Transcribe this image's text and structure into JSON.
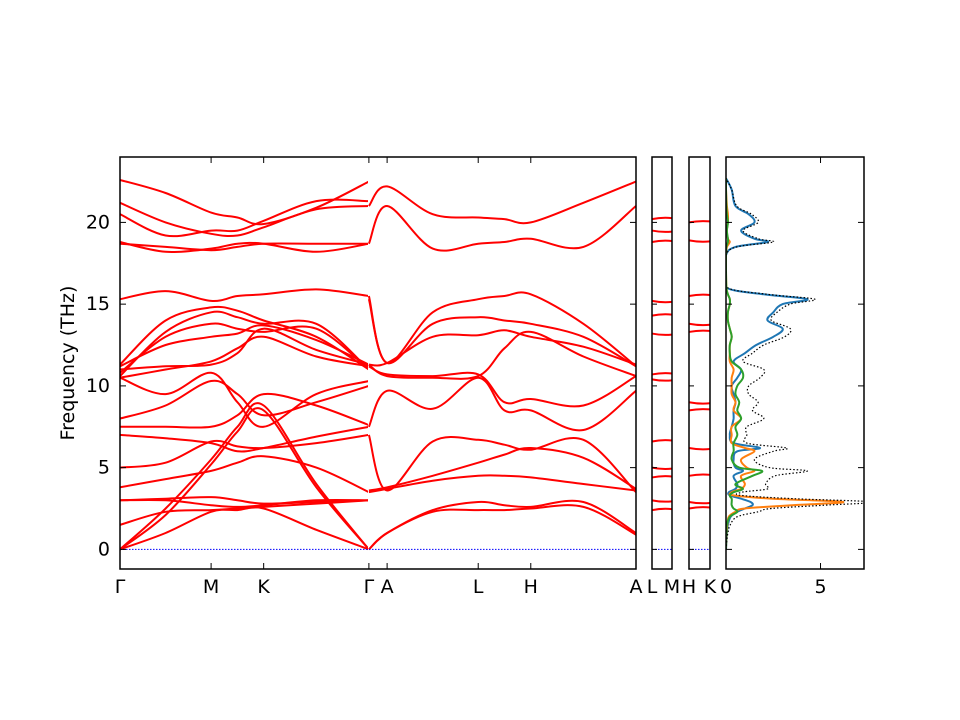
{
  "chart_data": {
    "type": "line",
    "title": "",
    "ylabel": "Frequency (THz)",
    "ylim": [
      -1.2,
      24
    ],
    "y_ticks": [
      0,
      5,
      10,
      15,
      20
    ],
    "colors": {
      "bands": "#ff0000",
      "zero_line": "#0000ff",
      "dos_total": "#000000",
      "dos_1": "#1f77b4",
      "dos_2": "#ff7f0e",
      "dos_3": "#2ca02c"
    },
    "band_panel": {
      "path_ticks": [
        {
          "label": "Γ",
          "x": 0
        },
        {
          "label": "M",
          "x": 1
        },
        {
          "label": "K",
          "x": 1.577
        },
        {
          "label": "Γ",
          "x": 2.732
        },
        {
          "label": "A",
          "x": 2.932
        },
        {
          "label": "L",
          "x": 3.932
        },
        {
          "label": "H",
          "x": 4.509
        },
        {
          "label": "A",
          "x": 5.664
        }
      ],
      "xlim": [
        0,
        5.664
      ],
      "segment_1": {
        "x_range": [
          0,
          2.732
        ],
        "x": [
          0,
          0.5,
          1,
          1.289,
          1.577,
          2.155,
          2.732
        ],
        "bands": [
          [
            0,
            2.5,
            5.5,
            7.5,
            8.8,
            4.0,
            0
          ],
          [
            0,
            2.1,
            5.2,
            7.2,
            8.5,
            3.8,
            0
          ],
          [
            0,
            1.0,
            2.3,
            2.4,
            2.5,
            1.2,
            0
          ],
          [
            1.5,
            2.3,
            2.4,
            2.5,
            2.6,
            2.8,
            3.0
          ],
          [
            3.0,
            3.0,
            2.7,
            2.6,
            2.7,
            3.0,
            3.0
          ],
          [
            3.0,
            3.1,
            3.2,
            3.0,
            2.8,
            2.9,
            3.0
          ],
          [
            3.8,
            4.3,
            4.8,
            5.3,
            5.7,
            5.0,
            3.5
          ],
          [
            5.0,
            5.3,
            6.6,
            6.3,
            6.2,
            6.5,
            7.0
          ],
          [
            7.0,
            6.8,
            6.5,
            6.0,
            6.2,
            6.9,
            7.5
          ],
          [
            7.5,
            7.5,
            7.5,
            8.2,
            9.5,
            8.8,
            7.6
          ],
          [
            8.0,
            8.8,
            10.3,
            9.5,
            8.2,
            9.0,
            10.0
          ],
          [
            10.5,
            9.5,
            10.8,
            9.0,
            7.5,
            9.5,
            10.3
          ],
          [
            10.5,
            11.0,
            11.5,
            12.3,
            13.0,
            11.8,
            11.2
          ],
          [
            11.0,
            11.2,
            11.3,
            12.0,
            13.5,
            12.2,
            11.3
          ],
          [
            11.2,
            12.5,
            13.0,
            13.2,
            13.7,
            12.8,
            11.3
          ],
          [
            10.8,
            13.0,
            13.8,
            13.5,
            13.3,
            13.5,
            11.0
          ],
          [
            10.6,
            13.3,
            14.5,
            14.2,
            13.8,
            13.8,
            11.0
          ],
          [
            11.3,
            14.0,
            14.8,
            14.6,
            14.0,
            13.0,
            11.0
          ],
          [
            15.3,
            15.8,
            15.2,
            15.5,
            15.6,
            15.9,
            15.5
          ],
          [
            18.7,
            18.5,
            18.3,
            18.5,
            18.7,
            18.7,
            18.7
          ],
          [
            18.8,
            18.2,
            18.4,
            18.7,
            18.7,
            18.2,
            18.7
          ],
          [
            21.2,
            20.0,
            19.3,
            19.2,
            19.7,
            20.8,
            21.0
          ],
          [
            20.5,
            19.2,
            19.5,
            19.5,
            20.1,
            21.3,
            21.3
          ],
          [
            22.6,
            21.8,
            20.6,
            20.3,
            19.9,
            20.9,
            22.5
          ]
        ]
      },
      "segment_2": {
        "x_range": [
          2.732,
          5.664
        ],
        "x": [
          2.732,
          2.932,
          3.432,
          3.932,
          4.22,
          4.509,
          5.087,
          5.664
        ],
        "bands": [
          [
            0,
            1.0,
            2.4,
            2.9,
            2.7,
            2.6,
            2.9,
            1.0
          ],
          [
            0,
            1.0,
            2.3,
            2.4,
            2.4,
            2.5,
            2.6,
            0.9
          ],
          [
            3.5,
            3.7,
            4.2,
            4.5,
            4.5,
            4.4,
            4.0,
            3.6
          ],
          [
            3.6,
            3.8,
            4.5,
            5.3,
            5.8,
            6.2,
            5.6,
            3.7
          ],
          [
            7.0,
            3.6,
            6.6,
            6.7,
            6.4,
            6.1,
            6.7,
            3.5
          ],
          [
            7.5,
            9.7,
            8.6,
            10.5,
            8.5,
            8.5,
            7.3,
            9.7
          ],
          [
            11.2,
            10.7,
            10.6,
            10.7,
            9.0,
            9.2,
            8.8,
            10.6
          ],
          [
            11.3,
            10.6,
            10.5,
            10.6,
            12.3,
            13.3,
            11.8,
            10.6
          ],
          [
            11.3,
            11.4,
            13.0,
            13.1,
            13.4,
            13.0,
            12.4,
            11.3
          ],
          [
            15.3,
            11.4,
            13.8,
            14.2,
            14.0,
            13.8,
            13.0,
            11.2
          ],
          [
            15.5,
            11.4,
            14.5,
            15.3,
            15.5,
            15.6,
            13.8,
            11.2
          ],
          [
            18.7,
            21.0,
            18.4,
            18.7,
            18.8,
            19.0,
            18.5,
            21.0
          ],
          [
            21.0,
            22.2,
            20.5,
            20.3,
            20.2,
            20.0,
            21.2,
            22.5
          ]
        ]
      }
    },
    "detail_panels": [
      {
        "labels": [
          "L",
          "M"
        ],
        "levels": [
          2.4,
          3.0,
          4.4,
          5.0,
          6.6,
          10.4,
          10.7,
          13.2,
          14.3,
          15.2,
          18.8,
          19.5,
          20.2
        ]
      },
      {
        "labels": [
          "H",
          "K"
        ],
        "levels": [
          2.5,
          2.9,
          4.5,
          6.2,
          8.5,
          9.0,
          13.3,
          13.8,
          15.5,
          18.9,
          20.0
        ]
      }
    ],
    "dos_panel": {
      "xlim": [
        0,
        7.3
      ],
      "x_ticks": [
        0,
        5
      ],
      "y": [
        0,
        0.5,
        1,
        1.5,
        2,
        2.3,
        2.5,
        2.7,
        2.9,
        3.1,
        3.3,
        3.5,
        3.7,
        4,
        4.5,
        4.8,
        5,
        5.5,
        6,
        6.2,
        6.5,
        7,
        7.5,
        8,
        8.5,
        9,
        9.5,
        10,
        10.5,
        11,
        11.5,
        12,
        12.5,
        13,
        13.5,
        14,
        14.5,
        15,
        15.3,
        15.6,
        16,
        17,
        18,
        18.5,
        18.8,
        19,
        19.5,
        20,
        20.5,
        21,
        22,
        22.7
      ],
      "series": [
        {
          "name": "",
          "values": [
            0,
            0.02,
            0.05,
            0.1,
            0.25,
            0.6,
            1.0,
            1.4,
            1.3,
            0.8,
            0.2,
            0.15,
            0.5,
            0.6,
            0.4,
            0.9,
            0.5,
            0.4,
            0.6,
            1.8,
            0.4,
            0.2,
            0.3,
            0.4,
            0.4,
            0.5,
            0.4,
            0.3,
            0.6,
            0.8,
            0.4,
            1.0,
            1.6,
            2.5,
            3.0,
            2.2,
            2.5,
            3.0,
            4.3,
            2.0,
            0.05,
            0,
            0,
            0.5,
            2.2,
            1.5,
            0.8,
            1.5,
            1.2,
            0.5,
            0.3,
            0
          ]
        },
        {
          "name": "",
          "values": [
            0,
            0.01,
            0.03,
            0.07,
            0.15,
            0.5,
            1.0,
            3.5,
            6.2,
            2.5,
            0.4,
            0.3,
            0.8,
            1.0,
            0.8,
            1.5,
            1.1,
            0.8,
            1.5,
            1.0,
            0.3,
            0.3,
            0.3,
            0.8,
            0.4,
            0.5,
            0.3,
            0.3,
            0.3,
            0.4,
            0.2,
            0.2,
            0.2,
            0.3,
            0.2,
            0.1,
            0.1,
            0.2,
            0.2,
            0.1,
            0.02,
            0,
            0,
            0.05,
            0.2,
            0.1,
            0.05,
            0.1,
            0.1,
            0.05,
            0,
            0
          ]
        },
        {
          "name": "",
          "values": [
            0,
            0.01,
            0.02,
            0.05,
            0.2,
            0.6,
            0.4,
            0.3,
            0.3,
            0.3,
            0.2,
            0.4,
            0.9,
            0.5,
            1.4,
            1.9,
            0.7,
            0.3,
            0.4,
            0.4,
            0.4,
            0.6,
            0.5,
            0.8,
            0.6,
            0.7,
            0.5,
            0.6,
            0.9,
            0.8,
            0.3,
            0.2,
            0.2,
            0.3,
            0.2,
            0.1,
            0.1,
            0.2,
            0.2,
            0.1,
            0.02,
            0,
            0,
            0.02,
            0.1,
            0.1,
            0.05,
            0.1,
            0.05,
            0.02,
            0,
            0
          ]
        },
        {
          "name": "",
          "values": [
            0,
            0.04,
            0.1,
            0.22,
            0.6,
            1.7,
            2.4,
            5.2,
            7.8,
            3.6,
            0.8,
            0.85,
            2.2,
            2.1,
            2.6,
            4.3,
            2.3,
            1.5,
            2.5,
            3.2,
            1.1,
            1.1,
            1.1,
            2.0,
            1.4,
            1.7,
            1.2,
            1.2,
            1.8,
            2.0,
            0.9,
            1.4,
            2.0,
            3.1,
            3.4,
            2.4,
            2.7,
            3.4,
            4.7,
            2.2,
            0.09,
            0,
            0,
            0.57,
            2.5,
            1.7,
            0.9,
            1.7,
            1.35,
            0.57,
            0.3,
            0
          ]
        }
      ]
    }
  }
}
